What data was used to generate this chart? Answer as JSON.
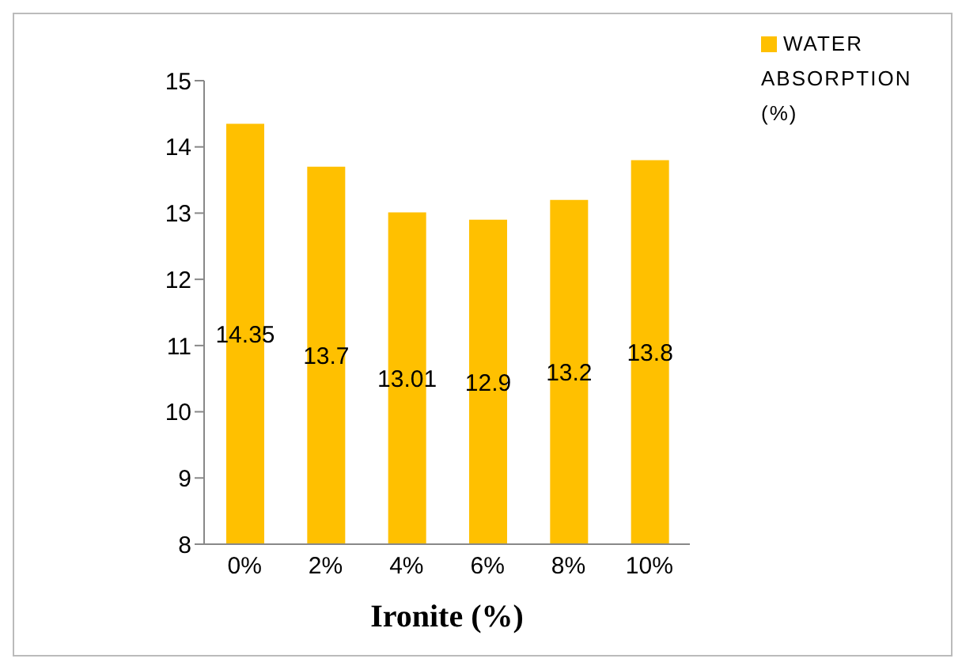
{
  "chart_data": {
    "type": "bar",
    "xlabel": "Ironite (%)",
    "categories": [
      "0%",
      "2%",
      "4%",
      "6%",
      "8%",
      "10%"
    ],
    "series": [
      {
        "name": "WATER ABSORPTION (%)",
        "color": "#ffc000",
        "values": [
          14.35,
          13.7,
          13.01,
          12.9,
          13.2,
          13.8
        ]
      }
    ],
    "ylim": [
      8,
      15
    ],
    "yticks": [
      8,
      9,
      10,
      11,
      12,
      13,
      14,
      15
    ],
    "data_labels": true,
    "legend": "top right"
  }
}
